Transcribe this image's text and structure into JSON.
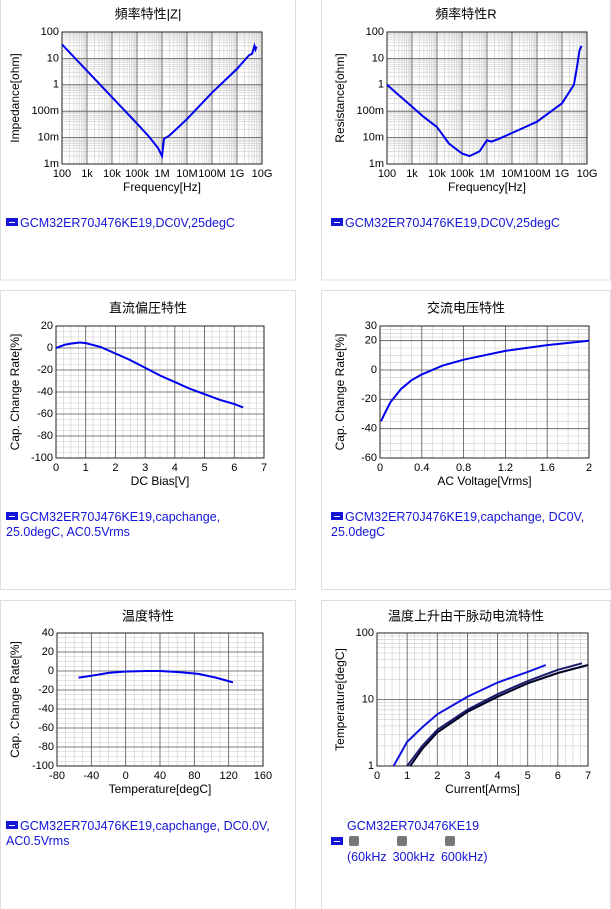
{
  "chart_data": [
    {
      "type": "line",
      "title": "頻率特性|Z|",
      "x_label": "Frequency[Hz]",
      "y_label": "Impedance[ohm]",
      "legend": "GCM32ER70J476KE19,DC0V,25degC",
      "log_x": true,
      "log_y": true,
      "grid": true,
      "minor_grid": true,
      "xlim": [
        100,
        10000000000
      ],
      "ylim": [
        0.001,
        100
      ],
      "xticks": [
        100,
        {
          "value": 1000,
          "label": "1k"
        },
        {
          "value": 10000,
          "label": "10k"
        },
        {
          "value": 100000,
          "label": "100k"
        },
        {
          "value": 1000000,
          "label": "1M"
        },
        {
          "value": 10000000,
          "label": "10M"
        },
        {
          "value": 100000000,
          "label": "100M"
        },
        {
          "value": 1000000000,
          "label": "1G"
        },
        {
          "value": 10000000000,
          "label": "10G"
        }
      ],
      "yticks": [
        {
          "value": 0.001,
          "label": "1m"
        },
        {
          "value": 0.01,
          "label": "10m"
        },
        {
          "value": 0.1,
          "label": "100m"
        },
        1,
        10,
        100
      ],
      "series": [
        {
          "color": "#0000ee",
          "x": [
            100,
            1000,
            10000,
            100000,
            300000,
            700000,
            1000000,
            1200000,
            2000000,
            10000000,
            100000000,
            1000000000,
            3000000000,
            4000000000,
            5000000000,
            5500000000,
            6000000000
          ],
          "values": [
            34,
            3.4,
            0.34,
            0.034,
            0.011,
            0.004,
            0.002,
            0.009,
            0.012,
            0.05,
            0.5,
            4,
            13,
            15,
            30,
            22,
            28
          ]
        }
      ]
    },
    {
      "type": "line",
      "title": "頻率特性R",
      "x_label": "Frequency[Hz]",
      "y_label": "Resistance[ohm]",
      "legend": "GCM32ER70J476KE19,DC0V,25degC",
      "log_x": true,
      "log_y": true,
      "grid": true,
      "minor_grid": true,
      "xlim": [
        100,
        10000000000
      ],
      "ylim": [
        0.001,
        100
      ],
      "xticks": [
        100,
        {
          "value": 1000,
          "label": "1k"
        },
        {
          "value": 10000,
          "label": "10k"
        },
        {
          "value": 100000,
          "label": "100k"
        },
        {
          "value": 1000000,
          "label": "1M"
        },
        {
          "value": 10000000,
          "label": "10M"
        },
        {
          "value": 100000000,
          "label": "100M"
        },
        {
          "value": 1000000000,
          "label": "1G"
        },
        {
          "value": 10000000000,
          "label": "10G"
        }
      ],
      "yticks": [
        {
          "value": 0.001,
          "label": "1m"
        },
        {
          "value": 0.01,
          "label": "10m"
        },
        {
          "value": 0.1,
          "label": "100m"
        },
        1,
        10,
        100
      ],
      "series": [
        {
          "color": "#0000ee",
          "x": [
            100,
            300,
            1000,
            3000,
            10000,
            30000,
            100000,
            200000,
            500000,
            1000000,
            1500000,
            3000000,
            10000000,
            100000000,
            1000000000,
            3000000000,
            4000000000,
            5000000000,
            6000000000
          ],
          "values": [
            1,
            0.4,
            0.15,
            0.06,
            0.025,
            0.006,
            0.0025,
            0.002,
            0.003,
            0.008,
            0.007,
            0.009,
            0.015,
            0.04,
            0.2,
            1,
            5,
            20,
            30
          ]
        }
      ]
    },
    {
      "type": "line",
      "title": "直流偏圧特性",
      "x_label": "DC Bias[V]",
      "y_label": "Cap. Change Rate[%]",
      "legend": "GCM32ER70J476KE19,capchange, 25.0degC, AC0.5Vrms",
      "log_x": false,
      "log_y": false,
      "grid": true,
      "minor_grid": true,
      "xlim": [
        0,
        7
      ],
      "ylim": [
        -100,
        20
      ],
      "xticks": [
        0,
        1,
        2,
        3,
        4,
        5,
        6,
        7
      ],
      "yticks": [
        -100,
        -80,
        -60,
        -40,
        -20,
        0,
        20
      ],
      "series": [
        {
          "color": "#0000ee",
          "x": [
            0,
            0.3,
            0.5,
            0.8,
            1,
            1.5,
            2,
            2.5,
            3,
            3.5,
            4,
            4.5,
            5,
            5.5,
            6,
            6.3
          ],
          "values": [
            0,
            3,
            4,
            5,
            4.5,
            1,
            -5,
            -11,
            -18,
            -25,
            -31,
            -37,
            -42,
            -47,
            -51,
            -54
          ]
        }
      ]
    },
    {
      "type": "line",
      "title": "交流电压特性",
      "x_label": "AC Voltage[Vrms]",
      "y_label": "Cap. Change Rate[%]",
      "legend": "GCM32ER70J476KE19,capchange, DC0V, 25.0degC",
      "log_x": false,
      "log_y": false,
      "grid": true,
      "minor_grid": true,
      "xlim": [
        0,
        2
      ],
      "ylim": [
        -60,
        30
      ],
      "xticks": [
        0,
        0.4,
        0.8,
        1.2,
        1.6,
        2
      ],
      "yticks": [
        -60,
        -40,
        -20,
        0,
        20,
        30
      ],
      "series": [
        {
          "color": "#0000ee",
          "x": [
            0.01,
            0.05,
            0.1,
            0.2,
            0.3,
            0.4,
            0.6,
            0.8,
            1.2,
            1.6,
            2
          ],
          "values": [
            -35,
            -29,
            -22,
            -13,
            -7,
            -3,
            3,
            7,
            13,
            17,
            20
          ]
        }
      ]
    },
    {
      "type": "line",
      "title": "温度特性",
      "x_label": "Temperature[degC]",
      "y_label": "Cap. Change Rate[%]",
      "legend": "GCM32ER70J476KE19,capchange, DC0.0V, AC0.5Vrms",
      "log_x": false,
      "log_y": false,
      "grid": true,
      "minor_grid": true,
      "xlim": [
        -80,
        160
      ],
      "ylim": [
        -100,
        40
      ],
      "xticks": [
        -80,
        -40,
        0,
        40,
        80,
        120,
        160
      ],
      "yticks": [
        -100,
        -80,
        -60,
        -40,
        -20,
        0,
        20,
        40
      ],
      "series": [
        {
          "color": "#0000ee",
          "x": [
            -55,
            -40,
            -20,
            0,
            25,
            40,
            60,
            85,
            105,
            125
          ],
          "values": [
            -7,
            -5,
            -2,
            -0.5,
            0,
            0,
            -1,
            -3,
            -7,
            -12
          ]
        }
      ]
    },
    {
      "type": "line",
      "title": "温度上升由干脉动电流特性",
      "x_label": "Current[Arms]",
      "y_label": "Temperature[degC]",
      "legend": "GCM32ER70J476KE19",
      "log_x": false,
      "log_y": true,
      "grid": true,
      "minor_grid": true,
      "xlim": [
        0,
        7
      ],
      "ylim": [
        1,
        100
      ],
      "xticks": [
        0,
        1,
        2,
        3,
        4,
        5,
        6,
        7
      ],
      "yticks": [
        1,
        10,
        100
      ],
      "series": [
        {
          "name": "(60kHz",
          "color": "#1010e0",
          "x": [
            0.55,
            1,
            1.5,
            2,
            3,
            4,
            5,
            5.6
          ],
          "values": [
            1,
            2.3,
            3.8,
            6,
            11,
            18,
            26,
            33
          ]
        },
        {
          "name": "300kHz",
          "color": "#1a1a70",
          "x": [
            1,
            1.5,
            2,
            3,
            4,
            5,
            6,
            6.8
          ],
          "values": [
            1,
            2,
            3.5,
            7,
            12,
            19,
            28,
            35
          ]
        },
        {
          "name": "600kHz)",
          "color": "#000022",
          "x": [
            1.1,
            1.5,
            2,
            3,
            4,
            5,
            6,
            7
          ],
          "values": [
            1,
            1.8,
            3.2,
            6.5,
            11,
            17.5,
            25,
            33
          ]
        }
      ]
    }
  ]
}
